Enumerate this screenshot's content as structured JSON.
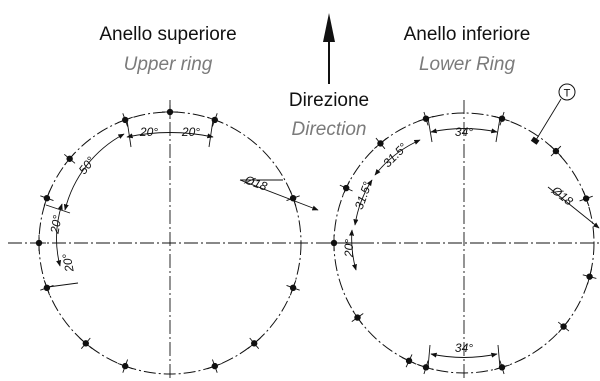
{
  "upper_ring": {
    "title": "Anello superiore",
    "subtitle": "Upper ring",
    "diameter_label": "Ø18",
    "angles": {
      "top_left": "20°",
      "top_right": "20°",
      "arc": "50°",
      "left_a": "20°",
      "left_b": "20°"
    }
  },
  "lower_ring": {
    "title": "Anello inferiore",
    "subtitle": "Lower Ring",
    "diameter_label": "Ø18",
    "marker": "T",
    "angles": {
      "top": "34°",
      "bottom": "34°",
      "left_a": "31.5°",
      "left_b": "31.5°",
      "left_c": "20°"
    }
  },
  "direction": {
    "title": "Direzione",
    "subtitle": "Direction"
  }
}
